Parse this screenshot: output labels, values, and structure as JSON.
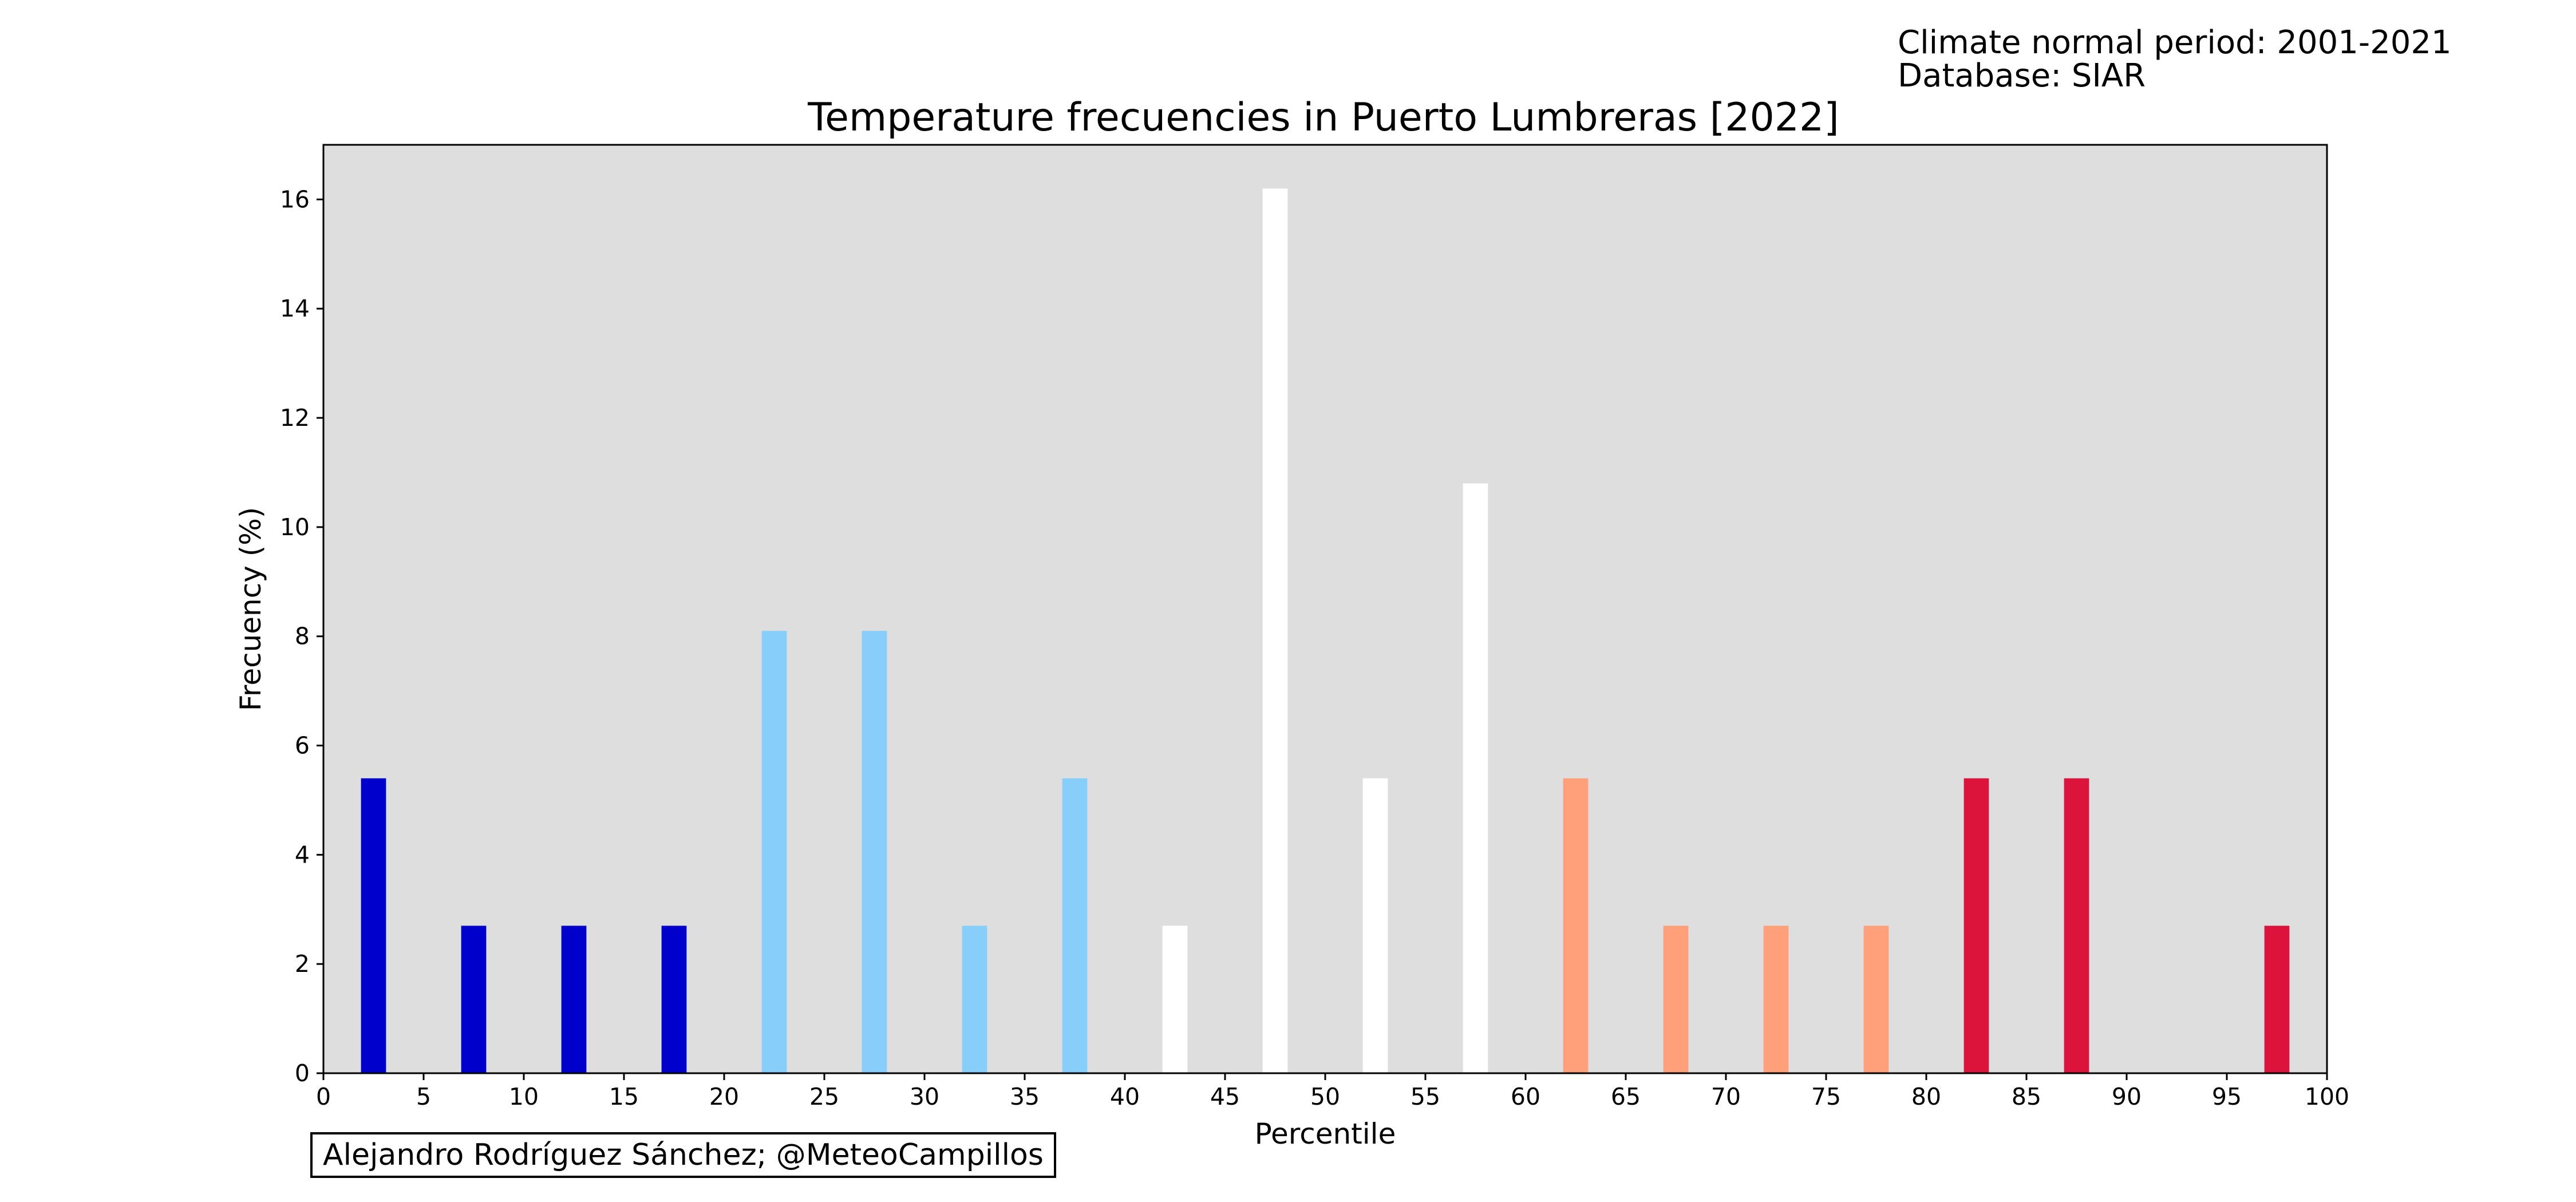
{
  "header": {
    "line1": "Climate normal period: 2001-2021",
    "line2": "Database: SIAR"
  },
  "credit": "Alejandro Rodríguez Sánchez; @MeteoCampillos",
  "colors": {
    "plot_background": "#dedede",
    "very_cold": "#0000cd",
    "cold": "#87cefa",
    "normal": "#ffffff",
    "warm": "#ffa07a",
    "very_warm": "#dc143c"
  },
  "chart_data": {
    "type": "bar",
    "title": "Temperature frecuencies in Puerto Lumbreras [2022]",
    "xlabel": "Percentile",
    "ylabel": "Frecuency (%)",
    "xlim": [
      0,
      100
    ],
    "ylim": [
      0,
      17
    ],
    "grid": false,
    "x_ticks": [
      "0",
      "5",
      "10",
      "15",
      "20",
      "25",
      "30",
      "35",
      "40",
      "45",
      "50",
      "55",
      "60",
      "65",
      "70",
      "75",
      "80",
      "85",
      "90",
      "95",
      "100"
    ],
    "y_ticks": [
      "0",
      "2",
      "4",
      "6",
      "8",
      "10",
      "12",
      "14",
      "16"
    ],
    "bars": [
      {
        "x": 2.5,
        "value": 5.4,
        "color": "#0000cd"
      },
      {
        "x": 7.5,
        "value": 2.7,
        "color": "#0000cd"
      },
      {
        "x": 12.5,
        "value": 2.7,
        "color": "#0000cd"
      },
      {
        "x": 17.5,
        "value": 2.7,
        "color": "#0000cd"
      },
      {
        "x": 22.5,
        "value": 8.1,
        "color": "#87cefa"
      },
      {
        "x": 27.5,
        "value": 8.1,
        "color": "#87cefa"
      },
      {
        "x": 32.5,
        "value": 2.7,
        "color": "#87cefa"
      },
      {
        "x": 37.5,
        "value": 5.4,
        "color": "#87cefa"
      },
      {
        "x": 42.5,
        "value": 2.7,
        "color": "#ffffff"
      },
      {
        "x": 47.5,
        "value": 16.2,
        "color": "#ffffff"
      },
      {
        "x": 52.5,
        "value": 5.4,
        "color": "#ffffff"
      },
      {
        "x": 57.5,
        "value": 10.8,
        "color": "#ffffff"
      },
      {
        "x": 62.5,
        "value": 5.4,
        "color": "#ffa07a"
      },
      {
        "x": 67.5,
        "value": 2.7,
        "color": "#ffa07a"
      },
      {
        "x": 72.5,
        "value": 2.7,
        "color": "#ffa07a"
      },
      {
        "x": 77.5,
        "value": 2.7,
        "color": "#ffa07a"
      },
      {
        "x": 82.5,
        "value": 5.4,
        "color": "#dc143c"
      },
      {
        "x": 87.5,
        "value": 5.4,
        "color": "#dc143c"
      },
      {
        "x": 92.5,
        "value": 0,
        "color": "#dc143c"
      },
      {
        "x": 97.5,
        "value": 2.7,
        "color": "#dc143c"
      }
    ],
    "bar_width": 1.25
  }
}
